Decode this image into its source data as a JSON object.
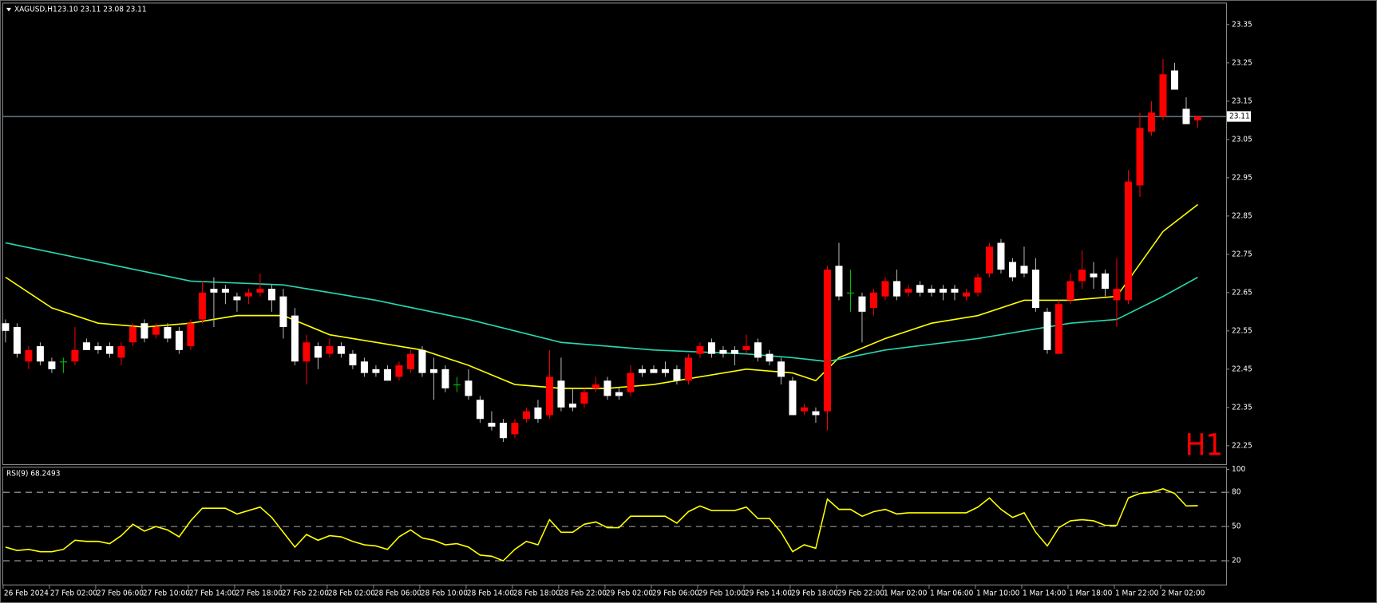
{
  "chart_data": [
    {
      "type": "candlestick",
      "title": "XAGUSD,H1",
      "subtitle": "23.10 23.11 23.08 23.11",
      "timeframe_label": "H1",
      "open": [
        22.57,
        22.56,
        22.47,
        22.51,
        22.47,
        22.47,
        22.47,
        22.52,
        22.51,
        22.51,
        22.48,
        22.52,
        22.57,
        22.54,
        22.56,
        22.55,
        22.51,
        22.58,
        22.66,
        22.66,
        22.64,
        22.64,
        22.65,
        22.66,
        22.64,
        22.59,
        22.47,
        22.51,
        22.49,
        22.51,
        22.49,
        22.47,
        22.45,
        22.45,
        22.43,
        22.45,
        22.5,
        22.45,
        22.45,
        22.41,
        22.42,
        22.37,
        22.31,
        22.31,
        22.28,
        22.32,
        22.35,
        22.33,
        22.42,
        22.36,
        22.36,
        22.4,
        22.42,
        22.39,
        22.39,
        22.45,
        22.45,
        22.45,
        22.45,
        22.42,
        22.49,
        22.52,
        22.5,
        22.5,
        22.5,
        22.52,
        22.49,
        22.47,
        22.42,
        22.34,
        22.34,
        22.34,
        22.72,
        22.65,
        22.64,
        22.61,
        22.64,
        22.68,
        22.65,
        22.67,
        22.66,
        22.66,
        22.66,
        22.64,
        22.65,
        22.7,
        22.78,
        22.73,
        22.72,
        22.71,
        22.6,
        22.49,
        22.63,
        22.68,
        22.7,
        22.7,
        22.63,
        22.63,
        22.93,
        23.07,
        23.11,
        23.23,
        23.13,
        23.1
      ],
      "high": [
        22.58,
        22.57,
        22.51,
        22.52,
        22.48,
        22.48,
        22.56,
        22.53,
        22.52,
        22.52,
        22.52,
        22.57,
        22.58,
        22.57,
        22.57,
        22.56,
        22.58,
        22.68,
        22.69,
        22.67,
        22.65,
        22.66,
        22.7,
        22.67,
        22.66,
        22.61,
        22.54,
        22.52,
        22.53,
        22.52,
        22.5,
        22.48,
        22.46,
        22.46,
        22.47,
        22.5,
        22.51,
        22.48,
        22.46,
        22.43,
        22.45,
        22.38,
        22.34,
        22.32,
        22.32,
        22.35,
        22.37,
        22.5,
        22.48,
        22.4,
        22.4,
        22.43,
        22.43,
        22.4,
        22.46,
        22.46,
        22.46,
        22.47,
        22.46,
        22.49,
        22.52,
        22.53,
        22.51,
        22.51,
        22.54,
        22.53,
        22.5,
        22.48,
        22.43,
        22.36,
        22.35,
        22.72,
        22.78,
        22.71,
        22.65,
        22.66,
        22.69,
        22.71,
        22.67,
        22.68,
        22.67,
        22.67,
        22.67,
        22.66,
        22.7,
        22.78,
        22.79,
        22.74,
        22.77,
        22.74,
        22.61,
        22.63,
        22.7,
        22.76,
        22.73,
        22.71,
        22.74,
        22.97,
        23.12,
        23.15,
        23.26,
        23.25,
        23.16,
        23.11
      ],
      "low": [
        22.52,
        22.48,
        22.45,
        22.46,
        22.44,
        22.44,
        22.46,
        22.5,
        22.49,
        22.48,
        22.46,
        22.51,
        22.52,
        22.53,
        22.52,
        22.49,
        22.5,
        22.57,
        22.56,
        22.62,
        22.6,
        22.62,
        22.64,
        22.6,
        22.53,
        22.46,
        22.41,
        22.45,
        22.48,
        22.48,
        22.45,
        22.43,
        22.43,
        22.42,
        22.42,
        22.44,
        22.43,
        22.37,
        22.39,
        22.39,
        22.37,
        22.31,
        22.29,
        22.26,
        22.27,
        22.31,
        22.31,
        22.32,
        22.34,
        22.34,
        22.35,
        22.39,
        22.37,
        22.37,
        22.38,
        22.43,
        22.44,
        22.43,
        22.41,
        22.41,
        22.48,
        22.48,
        22.48,
        22.46,
        22.49,
        22.47,
        22.46,
        22.41,
        22.33,
        22.33,
        22.31,
        22.29,
        22.63,
        22.6,
        22.52,
        22.59,
        22.63,
        22.63,
        22.64,
        22.64,
        22.64,
        22.63,
        22.63,
        22.63,
        22.64,
        22.69,
        22.7,
        22.68,
        22.69,
        22.6,
        22.49,
        22.49,
        22.62,
        22.66,
        22.66,
        22.64,
        22.56,
        22.62,
        22.9,
        23.06,
        23.1,
        23.18,
        23.09,
        23.08
      ],
      "close": [
        22.55,
        22.49,
        22.5,
        22.47,
        22.45,
        22.47,
        22.5,
        22.5,
        22.5,
        22.49,
        22.51,
        22.56,
        22.53,
        22.56,
        22.53,
        22.5,
        22.57,
        22.65,
        22.65,
        22.65,
        22.63,
        22.65,
        22.66,
        22.63,
        22.56,
        22.47,
        22.52,
        22.48,
        22.51,
        22.49,
        22.46,
        22.44,
        22.44,
        22.42,
        22.46,
        22.49,
        22.44,
        22.44,
        22.4,
        22.41,
        22.38,
        22.32,
        22.3,
        22.27,
        22.31,
        22.34,
        22.32,
        22.43,
        22.35,
        22.35,
        22.39,
        22.41,
        22.38,
        22.38,
        22.44,
        22.44,
        22.44,
        22.44,
        22.42,
        22.48,
        22.51,
        22.49,
        22.49,
        22.49,
        22.51,
        22.48,
        22.47,
        22.43,
        22.33,
        22.35,
        22.33,
        22.71,
        22.64,
        22.65,
        22.6,
        22.65,
        22.68,
        22.64,
        22.66,
        22.65,
        22.65,
        22.65,
        22.65,
        22.65,
        22.69,
        22.77,
        22.71,
        22.69,
        22.7,
        22.61,
        22.5,
        22.62,
        22.68,
        22.71,
        22.69,
        22.66,
        22.66,
        22.94,
        23.08,
        23.12,
        23.22,
        23.18,
        23.09,
        23.11
      ],
      "up_color": "#ff0000",
      "down_color": "#ffffff",
      "doji_color": "#00c800",
      "moving_averages": [
        {
          "color": "#ffff00",
          "x": [
            0,
            4,
            8,
            12,
            16,
            20,
            24,
            28,
            32,
            36,
            40,
            44,
            48,
            52,
            56,
            60,
            64,
            68,
            70,
            72,
            76,
            80,
            84,
            88,
            92,
            96,
            100,
            103
          ],
          "values": [
            22.69,
            22.61,
            22.57,
            22.56,
            22.57,
            22.59,
            22.59,
            22.54,
            22.52,
            22.5,
            22.46,
            22.41,
            22.4,
            22.4,
            22.41,
            22.43,
            22.45,
            22.44,
            22.42,
            22.48,
            22.53,
            22.57,
            22.59,
            22.63,
            22.63,
            22.64,
            22.81,
            22.88
          ]
        },
        {
          "color": "#26d7b0",
          "x": [
            0,
            8,
            16,
            24,
            32,
            40,
            48,
            56,
            64,
            68,
            71,
            76,
            84,
            92,
            96,
            100,
            103
          ],
          "values": [
            22.78,
            22.73,
            22.68,
            22.67,
            22.63,
            22.58,
            22.52,
            22.5,
            22.49,
            22.48,
            22.47,
            22.5,
            22.53,
            22.57,
            22.58,
            22.64,
            22.69
          ]
        }
      ],
      "current_price": {
        "value": 23.11,
        "label": "23.11"
      },
      "xlim": [
        -0.2,
        105.45
      ],
      "ylim": [
        22.202,
        23.405
      ],
      "yticks": [
        22.25,
        22.35,
        22.45,
        22.55,
        22.65,
        22.75,
        22.85,
        22.95,
        23.05,
        23.15,
        23.25,
        23.35
      ],
      "xticks": [
        {
          "value": 0,
          "label": "26 Feb 2024"
        },
        {
          "value": 4,
          "label": "27 Feb 02:00"
        },
        {
          "value": 8,
          "label": "27 Feb 06:00"
        },
        {
          "value": 12,
          "label": "27 Feb 10:00"
        },
        {
          "value": 16,
          "label": "27 Feb 14:00"
        },
        {
          "value": 20,
          "label": "27 Feb 18:00"
        },
        {
          "value": 24,
          "label": "27 Feb 22:00"
        },
        {
          "value": 28,
          "label": "28 Feb 02:00"
        },
        {
          "value": 32,
          "label": "28 Feb 06:00"
        },
        {
          "value": 36,
          "label": "28 Feb 10:00"
        },
        {
          "value": 40,
          "label": "28 Feb 14:00"
        },
        {
          "value": 44,
          "label": "28 Feb 18:00"
        },
        {
          "value": 48,
          "label": "28 Feb 22:00"
        },
        {
          "value": 52,
          "label": "29 Feb 02:00"
        },
        {
          "value": 56,
          "label": "29 Feb 06:00"
        },
        {
          "value": 60,
          "label": "29 Feb 10:00"
        },
        {
          "value": 64,
          "label": "29 Feb 14:00"
        },
        {
          "value": 68,
          "label": "29 Feb 18:00"
        },
        {
          "value": 72,
          "label": "29 Feb 22:00"
        },
        {
          "value": 76,
          "label": "1 Mar 02:00"
        },
        {
          "value": 80,
          "label": "1 Mar 06:00"
        },
        {
          "value": 84,
          "label": "1 Mar 10:00"
        },
        {
          "value": 88,
          "label": "1 Mar 14:00"
        },
        {
          "value": 92,
          "label": "1 Mar 18:00"
        },
        {
          "value": 96,
          "label": "1 Mar 22:00"
        },
        {
          "value": 100,
          "label": "2 Mar 02:00"
        }
      ]
    },
    {
      "type": "line",
      "title": "RSI(9) 68.2493",
      "color": "#ffff00",
      "values": [
        32,
        29,
        30,
        28,
        28,
        30,
        38,
        37,
        37,
        35,
        42,
        52,
        46,
        50,
        47,
        41,
        55,
        66,
        66,
        66,
        61,
        64,
        67,
        58,
        45,
        32,
        43,
        38,
        42,
        41,
        37,
        34,
        33,
        30,
        41,
        47,
        40,
        38,
        34,
        35,
        32,
        25,
        24,
        20,
        30,
        37,
        34,
        56,
        45,
        45,
        52,
        54,
        49,
        49,
        59,
        59,
        59,
        59,
        53,
        63,
        68,
        64,
        64,
        64,
        67,
        57,
        57,
        45,
        28,
        34,
        31,
        74,
        65,
        65,
        59,
        63,
        65,
        61,
        62,
        62,
        62,
        62,
        62,
        62,
        67,
        75,
        65,
        58,
        62,
        45,
        33,
        49,
        55,
        56,
        55,
        51,
        51,
        75,
        79,
        80,
        83,
        79,
        68,
        68.2493
      ],
      "levels": [
        20,
        50,
        80
      ],
      "ylim": [
        0,
        100
      ],
      "yticks": [
        20,
        50,
        80,
        100
      ]
    }
  ]
}
